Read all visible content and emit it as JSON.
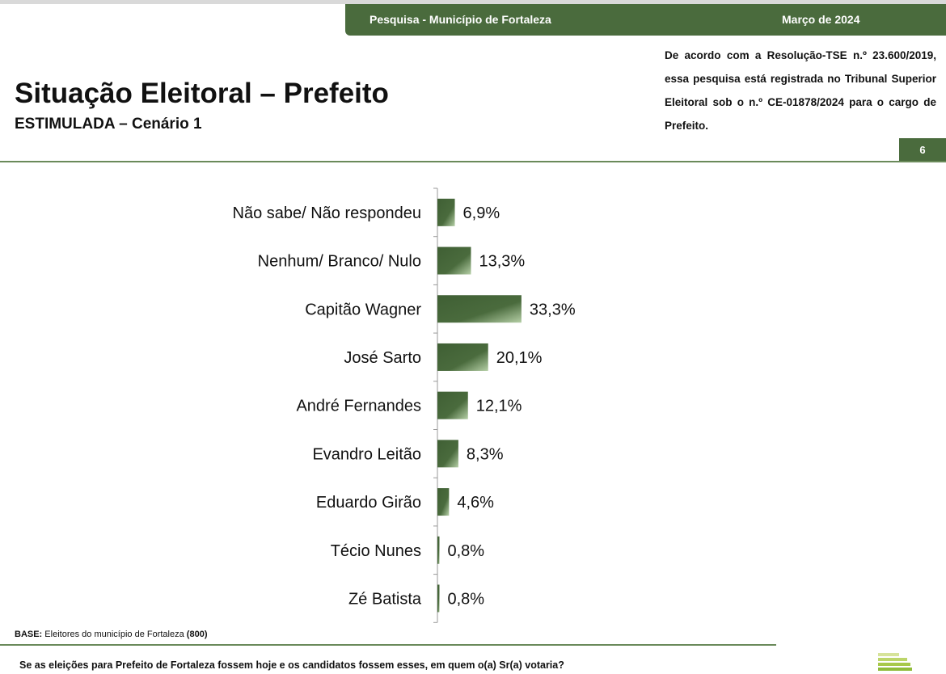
{
  "header": {
    "banner_left": "Pesquisa - Município de Fortaleza",
    "banner_right": "Março de 2024",
    "title": "Situação Eleitoral – Prefeito",
    "subtitle": "ESTIMULADA – Cenário 1",
    "note": "De acordo com a Resolução-TSE n.º 23.600/2019, essa pesquisa está registrada no Tribunal Superior Eleitoral sob o n.º CE-01878/2024 para o cargo de Prefeito.",
    "page": "6"
  },
  "footer": {
    "base_label": "BASE:",
    "base_text": "Eleitores do município de Fortaleza",
    "base_n": "(800)",
    "question": "Se as eleições para Prefeito de Fortaleza fossem hoje e os candidatos fossem esses, em quem o(a) Sr(a) votaria?"
  },
  "colors": {
    "primary": "#4a6b3d",
    "bar_dark": "#3f5f34",
    "bar_light": "#a9c49a"
  },
  "chart_data": {
    "type": "bar",
    "orientation": "horizontal",
    "title": "Situação Eleitoral – Prefeito",
    "categories": [
      "Não sabe/ Não respondeu",
      "Nenhum/ Branco/ Nulo",
      "Capitão Wagner",
      "José Sarto",
      "André Fernandes",
      "Evandro Leitão",
      "Eduardo Girão",
      "Técio Nunes",
      "Zé Batista"
    ],
    "values": [
      6.9,
      13.3,
      33.3,
      20.1,
      12.1,
      8.3,
      4.6,
      0.8,
      0.8
    ],
    "labels": [
      "6,9%",
      "13,3%",
      "33,3%",
      "20,1%",
      "12,1%",
      "8,3%",
      "4,6%",
      "0,8%",
      "0,8%"
    ],
    "xlim": [
      0,
      100
    ],
    "grid": false
  }
}
